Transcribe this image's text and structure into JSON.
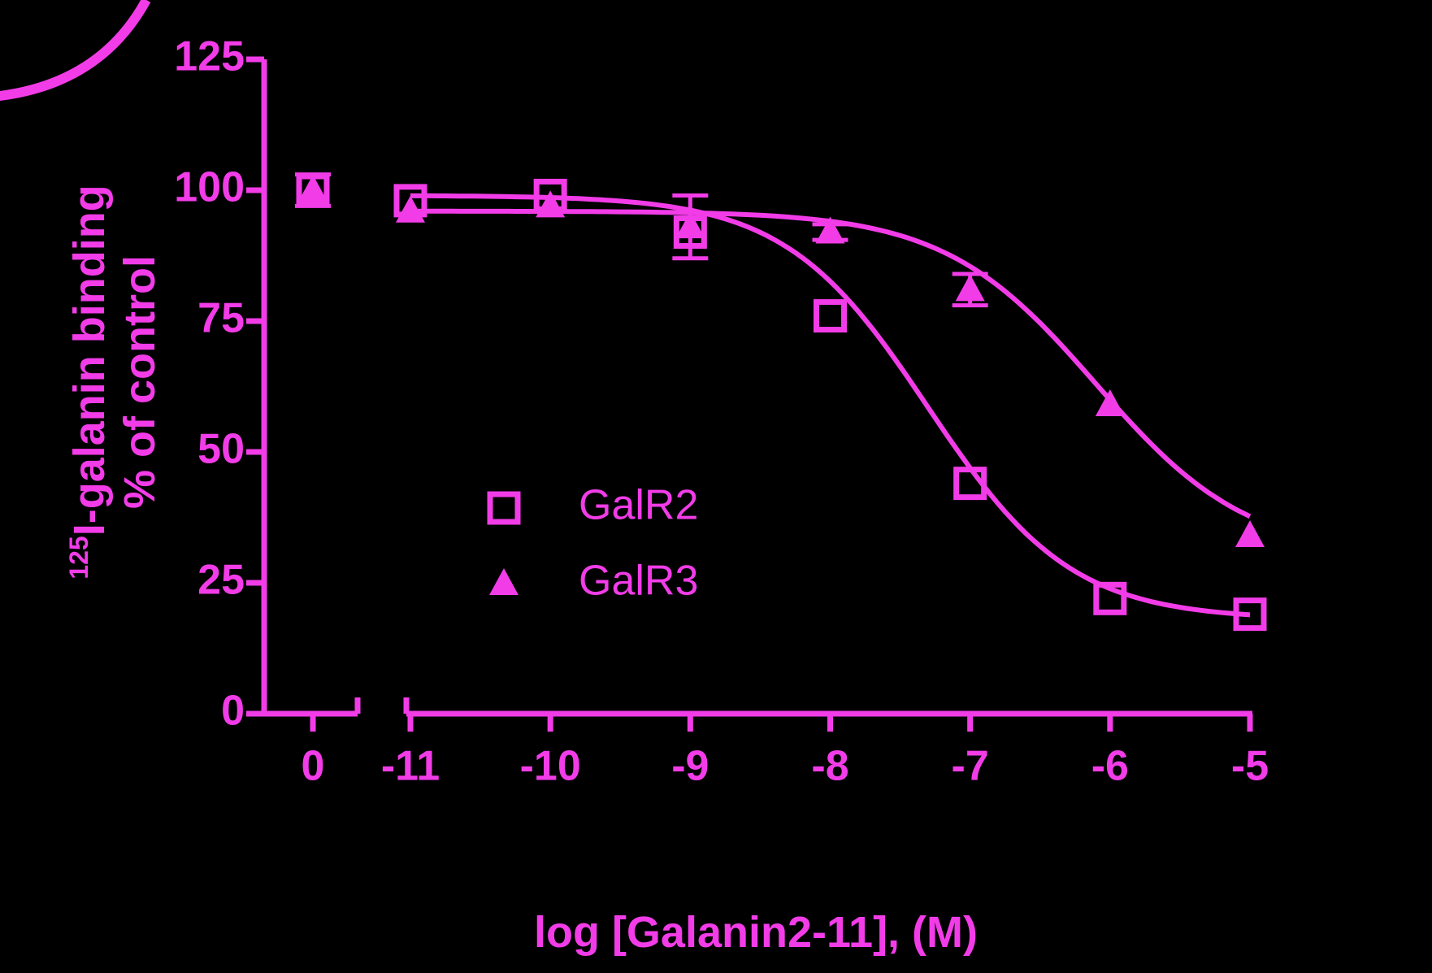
{
  "chart_data": {
    "type": "scatter",
    "xlabel": "log [Galanin2-11], (M)",
    "ylabel_sup": "125",
    "ylabel": "I-galanin binding",
    "ylabel2": "% of control",
    "x": [
      0,
      -11,
      -10,
      -9,
      -8,
      -7,
      -6,
      -5
    ],
    "xlim": [
      -11,
      -5
    ],
    "axis_break": true,
    "xticks": [
      0,
      -11,
      -10,
      -9,
      -8,
      -7,
      -6,
      -5
    ],
    "ylim": [
      0,
      125
    ],
    "yticks": [
      0,
      25,
      50,
      75,
      100,
      125
    ],
    "series": [
      {
        "name": "GalR2",
        "color": "#f23ce8",
        "marker": "square",
        "values": [
          100,
          98,
          99,
          92,
          76,
          44,
          22,
          19
        ],
        "errors": [
          null,
          null,
          null,
          null,
          null,
          null,
          null,
          null
        ],
        "fit": {
          "top": 99,
          "bottom": 18,
          "logIC50": -7.3,
          "hill": 0.85
        }
      },
      {
        "name": "GalR3",
        "color": "#f23ce8",
        "marker": "triangle",
        "values": [
          100,
          96,
          97,
          93,
          92,
          81,
          59,
          34
        ],
        "errors": [
          3,
          null,
          null,
          6,
          1.5,
          3,
          null,
          null
        ],
        "fit": {
          "top": 96,
          "bottom": 30,
          "logIC50": -6.1,
          "hill": 0.8
        }
      }
    ]
  }
}
